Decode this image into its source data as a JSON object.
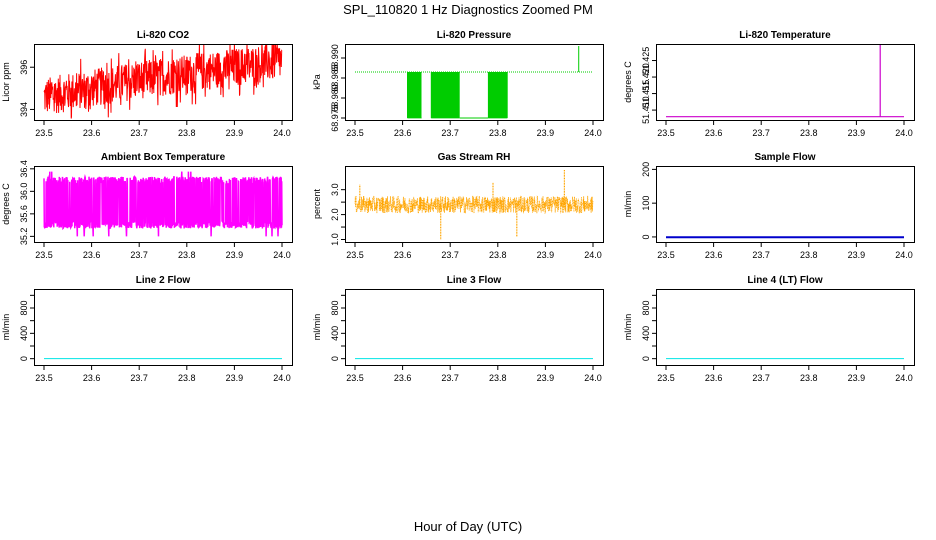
{
  "figure": {
    "title": "SPL_110820  1 Hz Diagnostics Zoomed PM",
    "xlabel": "Hour of Day (UTC)"
  },
  "chart_data": [
    {
      "type": "line",
      "title": "Li-820 CO2",
      "ylabel": "Licor ppm",
      "color": "#ff0000",
      "xlim": [
        23.5,
        24.0
      ],
      "ylim": [
        393.5,
        397.1
      ],
      "x_ticks": [
        "23.5",
        "23.6",
        "23.7",
        "23.8",
        "23.9",
        "24.0"
      ],
      "y_ticks": [
        394,
        396
      ],
      "y_tick_labels": [
        "394",
        "396"
      ],
      "series": [
        {
          "name": "CO2",
          "pattern": "noisy_trend",
          "x": [
            23.5,
            23.6,
            23.7,
            23.8,
            23.9,
            24.0
          ],
          "values": [
            394.6,
            395.0,
            395.4,
            395.7,
            396.0,
            396.3
          ],
          "noise": 1.3
        }
      ]
    },
    {
      "type": "line",
      "title": "Li-820 Pressure",
      "ylabel": "kPa",
      "color": "#00cc00",
      "xlim": [
        23.5,
        24.0
      ],
      "ylim": [
        68.9745,
        68.9935
      ],
      "x_ticks": [
        "23.5",
        "23.6",
        "23.7",
        "23.8",
        "23.9",
        "24.0"
      ],
      "y_ticks": [
        68.975,
        68.98,
        68.985,
        68.99
      ],
      "y_tick_labels": [
        "68.975",
        "68.980",
        "68.985",
        "68.990"
      ],
      "series": [
        {
          "name": "Pressure",
          "pattern": "level_with_dropouts",
          "baseline": 68.9865,
          "low": 68.975,
          "x": [
            23.5,
            24.0
          ],
          "dropout_windows": [
            [
              23.61,
              23.64
            ],
            [
              23.66,
              23.72
            ],
            [
              23.78,
              23.82
            ]
          ],
          "spike": {
            "x": 23.97,
            "value": 68.993
          }
        }
      ]
    },
    {
      "type": "line",
      "title": "Li-820 Temperature",
      "ylabel": "degrees C",
      "color": "#cc00cc",
      "xlim": [
        23.5,
        24.0
      ],
      "ylim": [
        51.407,
        51.43
      ],
      "x_ticks": [
        "23.5",
        "23.6",
        "23.7",
        "23.8",
        "23.9",
        "24.0"
      ],
      "y_ticks": [
        51.41,
        51.415,
        51.42,
        51.425
      ],
      "y_tick_labels": [
        "51.410",
        "51.415",
        "51.420",
        "51.425"
      ],
      "series": [
        {
          "name": "Temperature",
          "pattern": "flat_with_spike",
          "baseline": 51.408,
          "x": [
            23.5,
            24.0
          ],
          "spike": {
            "x": 23.95,
            "value": 51.43
          }
        }
      ]
    },
    {
      "type": "line",
      "title": "Ambient Box Temperature",
      "ylabel": "degrees C",
      "color": "#ff00ff",
      "xlim": [
        23.5,
        24.0
      ],
      "ylim": [
        35.1,
        36.45
      ],
      "x_ticks": [
        "23.5",
        "23.6",
        "23.7",
        "23.8",
        "23.9",
        "24.0"
      ],
      "y_ticks": [
        35.2,
        35.6,
        36.0,
        36.4
      ],
      "y_tick_labels": [
        "35.2",
        "35.6",
        "36.0",
        "36.4"
      ],
      "series": [
        {
          "name": "Box temperature",
          "pattern": "two_level_square_noise",
          "low": 35.4,
          "high": 36.2,
          "x": [
            23.5,
            24.0
          ]
        }
      ]
    },
    {
      "type": "line",
      "title": "Gas Stream RH",
      "ylabel": "percent",
      "color": "#ffa500",
      "xlim": [
        23.5,
        24.0
      ],
      "ylim": [
        0.9,
        3.95
      ],
      "x_ticks": [
        "23.5",
        "23.6",
        "23.7",
        "23.8",
        "23.9",
        "24.0"
      ],
      "y_ticks": [
        1.0,
        1.5,
        2.0,
        2.5,
        3.0
      ],
      "y_tick_labels": [
        "1.0",
        "",
        "2.0",
        "",
        "3.0"
      ],
      "series": [
        {
          "name": "RH",
          "pattern": "noisy_band",
          "mean": 2.4,
          "noise": 0.35,
          "x": [
            23.5,
            24.0
          ],
          "spikes": [
            {
              "x": 23.51,
              "value": 3.2
            },
            {
              "x": 23.68,
              "value": 1.0
            },
            {
              "x": 23.79,
              "value": 3.3
            },
            {
              "x": 23.84,
              "value": 1.1
            },
            {
              "x": 23.94,
              "value": 3.8
            }
          ]
        }
      ]
    },
    {
      "type": "line",
      "title": "Sample Flow",
      "ylabel": "ml/min",
      "color": "#0000cc",
      "xlim": [
        23.5,
        24.0
      ],
      "ylim": [
        -15,
        210
      ],
      "x_ticks": [
        "23.5",
        "23.6",
        "23.7",
        "23.8",
        "23.9",
        "24.0"
      ],
      "y_ticks": [
        0,
        100,
        200
      ],
      "y_tick_labels": [
        "0",
        "100",
        "200"
      ],
      "series": [
        {
          "name": "Sample flow",
          "pattern": "flat",
          "value": -1,
          "x": [
            23.5,
            24.0
          ]
        }
      ]
    },
    {
      "type": "line",
      "title": "Line 2 Flow",
      "ylabel": "ml/min",
      "color": "#00e5e5",
      "xlim": [
        23.5,
        24.0
      ],
      "ylim": [
        -100,
        1100
      ],
      "x_ticks": [
        "23.5",
        "23.6",
        "23.7",
        "23.8",
        "23.9",
        "24.0"
      ],
      "y_ticks": [
        0,
        200,
        400,
        600,
        800,
        1000
      ],
      "y_tick_labels": [
        "0",
        "",
        "400",
        "",
        "800",
        ""
      ],
      "series": [
        {
          "name": "Line 2 flow",
          "pattern": "flat",
          "value": 0,
          "x": [
            23.5,
            24.0
          ]
        }
      ]
    },
    {
      "type": "line",
      "title": "Line 3 Flow",
      "ylabel": "ml/min",
      "color": "#00e5e5",
      "xlim": [
        23.5,
        24.0
      ],
      "ylim": [
        -100,
        1100
      ],
      "x_ticks": [
        "23.5",
        "23.6",
        "23.7",
        "23.8",
        "23.9",
        "24.0"
      ],
      "y_ticks": [
        0,
        200,
        400,
        600,
        800,
        1000
      ],
      "y_tick_labels": [
        "0",
        "",
        "400",
        "",
        "800",
        ""
      ],
      "series": [
        {
          "name": "Line 3 flow",
          "pattern": "flat",
          "value": 0,
          "x": [
            23.5,
            24.0
          ]
        }
      ]
    },
    {
      "type": "line",
      "title": "Line 4 (LT) Flow",
      "ylabel": "ml/min",
      "color": "#00e5e5",
      "xlim": [
        23.5,
        24.0
      ],
      "ylim": [
        -100,
        1100
      ],
      "x_ticks": [
        "23.5",
        "23.6",
        "23.7",
        "23.8",
        "23.9",
        "24.0"
      ],
      "y_ticks": [
        0,
        200,
        400,
        600,
        800,
        1000
      ],
      "y_tick_labels": [
        "0",
        "",
        "400",
        "",
        "800",
        ""
      ],
      "series": [
        {
          "name": "Line 4 flow",
          "pattern": "flat",
          "value": 0,
          "x": [
            23.5,
            24.0
          ]
        }
      ]
    }
  ]
}
